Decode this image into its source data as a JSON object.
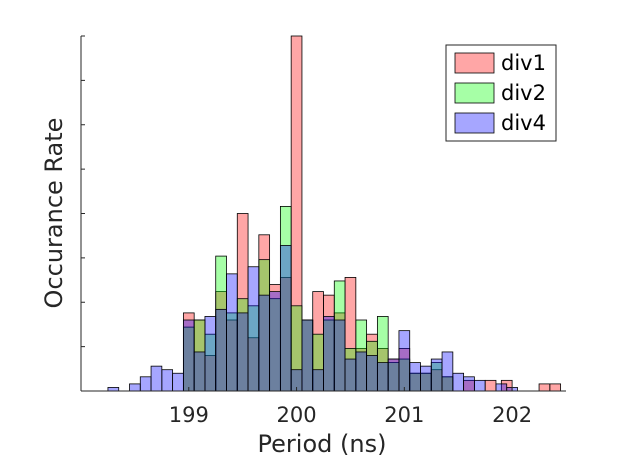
{
  "chart_data": {
    "type": "bar",
    "title": "",
    "xlabel": "Period (ns)",
    "ylabel": "Occurance Rate",
    "xlim": [
      198.0,
      202.5
    ],
    "ylim": [
      0,
      1.0
    ],
    "x_ticks": [
      199,
      200,
      201,
      202
    ],
    "grid": false,
    "legend_position": "top-right",
    "bin_width": 0.1,
    "series": [
      {
        "name": "div1",
        "color": "#ff0000",
        "alpha": 0.35,
        "bins": [
          [
            199.0,
            0.22
          ],
          [
            199.1,
            0.2
          ],
          [
            199.2,
            0.1
          ],
          [
            199.3,
            0.28
          ],
          [
            199.4,
            0.2
          ],
          [
            199.5,
            0.5
          ],
          [
            199.6,
            0.15
          ],
          [
            199.7,
            0.44
          ],
          [
            199.8,
            0.3
          ],
          [
            199.9,
            0.32
          ],
          [
            200.0,
            1.0
          ],
          [
            200.1,
            0.2
          ],
          [
            200.2,
            0.28
          ],
          [
            200.3,
            0.27
          ],
          [
            200.4,
            0.22
          ],
          [
            200.5,
            0.32
          ],
          [
            200.6,
            0.12
          ],
          [
            200.7,
            0.16
          ],
          [
            200.8,
            0.12
          ],
          [
            200.9,
            0.09
          ],
          [
            201.0,
            0.12
          ],
          [
            201.1,
            0.05
          ],
          [
            201.2,
            0.05
          ],
          [
            201.3,
            0.06
          ],
          [
            201.4,
            0.04
          ],
          [
            201.6,
            0.03
          ],
          [
            201.8,
            0.03
          ],
          [
            201.95,
            0.03
          ],
          [
            202.3,
            0.02
          ],
          [
            202.4,
            0.02
          ]
        ]
      },
      {
        "name": "div2",
        "color": "#00ff00",
        "alpha": 0.35,
        "bins": [
          [
            199.0,
            0.18
          ],
          [
            199.1,
            0.2
          ],
          [
            199.2,
            0.16
          ],
          [
            199.3,
            0.38
          ],
          [
            199.4,
            0.22
          ],
          [
            199.5,
            0.26
          ],
          [
            199.6,
            0.24
          ],
          [
            199.7,
            0.37
          ],
          [
            199.8,
            0.26
          ],
          [
            199.9,
            0.52
          ],
          [
            200.0,
            0.24
          ],
          [
            200.1,
            0.2
          ],
          [
            200.2,
            0.16
          ],
          [
            200.3,
            0.2
          ],
          [
            200.4,
            0.31
          ],
          [
            200.5,
            0.12
          ],
          [
            200.6,
            0.2
          ],
          [
            200.7,
            0.14
          ],
          [
            200.8,
            0.21
          ],
          [
            200.9,
            0.08
          ],
          [
            201.0,
            0.09
          ],
          [
            201.1,
            0.05
          ],
          [
            201.2,
            0.05
          ],
          [
            201.3,
            0.08
          ],
          [
            201.4,
            0.04
          ]
        ]
      },
      {
        "name": "div4",
        "color": "#0000ff",
        "alpha": 0.35,
        "bins": [
          [
            198.1,
            0.0
          ],
          [
            198.3,
            0.01
          ],
          [
            198.5,
            0.02
          ],
          [
            198.6,
            0.04
          ],
          [
            198.7,
            0.07
          ],
          [
            198.8,
            0.06
          ],
          [
            198.9,
            0.05
          ],
          [
            199.0,
            0.2
          ],
          [
            199.1,
            0.11
          ],
          [
            199.2,
            0.21
          ],
          [
            199.3,
            0.23
          ],
          [
            199.4,
            0.33
          ],
          [
            199.5,
            0.22
          ],
          [
            199.6,
            0.35
          ],
          [
            199.7,
            0.27
          ],
          [
            199.8,
            0.28
          ],
          [
            199.9,
            0.41
          ],
          [
            200.0,
            0.06
          ],
          [
            200.1,
            0.2
          ],
          [
            200.2,
            0.06
          ],
          [
            200.3,
            0.21
          ],
          [
            200.4,
            0.2
          ],
          [
            200.5,
            0.09
          ],
          [
            200.6,
            0.11
          ],
          [
            200.7,
            0.1
          ],
          [
            200.8,
            0.08
          ],
          [
            200.9,
            0.09
          ],
          [
            201.0,
            0.17
          ],
          [
            201.1,
            0.08
          ],
          [
            201.2,
            0.07
          ],
          [
            201.3,
            0.09
          ],
          [
            201.4,
            0.11
          ],
          [
            201.5,
            0.05
          ],
          [
            201.6,
            0.04
          ],
          [
            201.7,
            0.03
          ],
          [
            201.9,
            0.02
          ],
          [
            202.0,
            0.01
          ]
        ]
      }
    ]
  }
}
